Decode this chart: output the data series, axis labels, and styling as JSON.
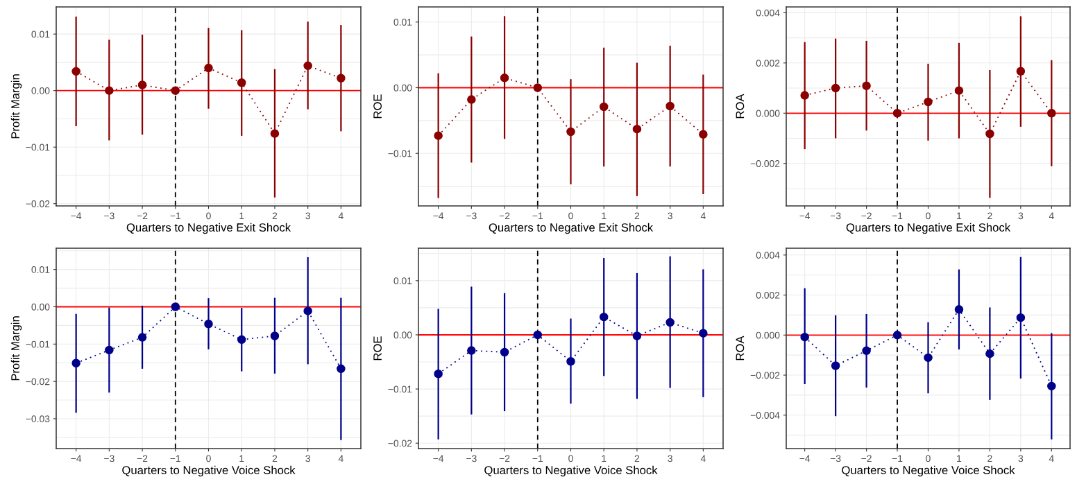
{
  "chart_data": [
    {
      "type": "line",
      "ylabel": "Profit Margin",
      "xlabel": "Quarters to Negative Exit Shock",
      "x": [
        -4,
        -3,
        -2,
        -1,
        0,
        1,
        2,
        3,
        4
      ],
      "xlim": [
        -4.6,
        4.6
      ],
      "xticks": [
        -4,
        -3,
        -2,
        -1,
        0,
        1,
        2,
        3,
        4
      ],
      "ylim": [
        -0.0204,
        0.0148
      ],
      "yticks": [
        {
          "value": -0.02,
          "label": "−0.02"
        },
        {
          "value": -0.01,
          "label": "−0.01"
        },
        {
          "value": 0,
          "label": "0.00"
        },
        {
          "value": 0.01,
          "label": "0.01"
        }
      ],
      "grid": true,
      "marker": "circle",
      "line_style": "dotted",
      "series": [
        {
          "color": "#8b0000",
          "values": [
            0.0034,
            0.0,
            0.001,
            0.0,
            0.004,
            0.0014,
            -0.0076,
            0.0044,
            0.0022
          ],
          "errors": [
            [
              -0.0063,
              0.0131
            ],
            [
              -0.0088,
              0.009
            ],
            [
              -0.0078,
              0.0099
            ],
            null,
            [
              -0.0032,
              0.0111
            ],
            [
              -0.008,
              0.0107
            ],
            [
              -0.0189,
              0.0038
            ],
            [
              -0.0033,
              0.0122
            ],
            [
              -0.0072,
              0.0116
            ]
          ]
        }
      ],
      "ref_lines": [
        {
          "axis": "y",
          "value": 0,
          "color": "#ff0000",
          "line_style": "solid"
        },
        {
          "axis": "x",
          "value": -1,
          "color": "#000000",
          "line_style": "dashed"
        }
      ]
    },
    {
      "type": "line",
      "ylabel": "ROE",
      "xlabel": "Quarters to Negative Exit Shock",
      "x": [
        -4,
        -3,
        -2,
        -1,
        0,
        1,
        2,
        3,
        4
      ],
      "xlim": [
        -4.6,
        4.6
      ],
      "xticks": [
        -4,
        -3,
        -2,
        -1,
        0,
        1,
        2,
        3,
        4
      ],
      "ylim": [
        -0.018,
        0.0123
      ],
      "yticks": [
        {
          "value": -0.01,
          "label": "−0.01"
        },
        {
          "value": 0,
          "label": "0.00"
        },
        {
          "value": 0.01,
          "label": "0.01"
        }
      ],
      "grid": true,
      "marker": "circle",
      "line_style": "dotted",
      "series": [
        {
          "color": "#8b0000",
          "values": [
            -0.0073,
            -0.0018,
            0.0015,
            0.0,
            -0.0067,
            -0.0029,
            -0.0063,
            -0.0028,
            -0.0071
          ],
          "errors": [
            [
              -0.0168,
              0.0022
            ],
            [
              -0.0114,
              0.0078
            ],
            [
              -0.0078,
              0.0109
            ],
            null,
            [
              -0.0147,
              0.0013
            ],
            [
              -0.012,
              0.0061
            ],
            [
              -0.0165,
              0.0038
            ],
            [
              -0.012,
              0.0064
            ],
            [
              -0.0162,
              0.002
            ]
          ]
        }
      ],
      "ref_lines": [
        {
          "axis": "y",
          "value": 0,
          "color": "#ff0000",
          "line_style": "solid"
        },
        {
          "axis": "x",
          "value": -1,
          "color": "#000000",
          "line_style": "dashed"
        }
      ]
    },
    {
      "type": "line",
      "ylabel": "ROA",
      "xlabel": "Quarters to Negative Exit Shock",
      "x": [
        -4,
        -3,
        -2,
        -1,
        0,
        1,
        2,
        3,
        4
      ],
      "xlim": [
        -4.6,
        4.6
      ],
      "xticks": [
        -4,
        -3,
        -2,
        -1,
        0,
        1,
        2,
        3,
        4
      ],
      "ylim": [
        -0.00369,
        0.00423
      ],
      "yticks": [
        {
          "value": -0.002,
          "label": "−0.002"
        },
        {
          "value": 0,
          "label": "0.000"
        },
        {
          "value": 0.002,
          "label": "0.002"
        },
        {
          "value": 0.004,
          "label": "0.004"
        }
      ],
      "grid": true,
      "marker": "circle",
      "line_style": "dotted",
      "series": [
        {
          "color": "#8b0000",
          "values": [
            0.00071,
            0.001,
            0.00109,
            0.0,
            0.00045,
            0.0009,
            -0.00082,
            0.00167,
            0.0
          ],
          "errors": [
            [
              -0.00143,
              0.00283
            ],
            [
              -0.001,
              0.00297
            ],
            [
              -0.00069,
              0.00288
            ],
            null,
            [
              -0.00109,
              0.00197
            ],
            [
              -0.001,
              0.0028
            ],
            [
              -0.00337,
              0.00172
            ],
            [
              -0.00054,
              0.00386
            ],
            [
              -0.00211,
              0.00211
            ]
          ]
        }
      ],
      "ref_lines": [
        {
          "axis": "y",
          "value": 0,
          "color": "#ff0000",
          "line_style": "solid"
        },
        {
          "axis": "x",
          "value": -1,
          "color": "#000000",
          "line_style": "dashed"
        }
      ]
    },
    {
      "type": "line",
      "ylabel": "Profit Margin",
      "xlabel": "Quarters to Negative Voice Shock",
      "x": [
        -4,
        -3,
        -2,
        -1,
        0,
        1,
        2,
        3,
        4
      ],
      "xlim": [
        -4.6,
        4.6
      ],
      "xticks": [
        -4,
        -3,
        -2,
        -1,
        0,
        1,
        2,
        3,
        4
      ],
      "ylim": [
        -0.038,
        0.0157
      ],
      "yticks": [
        {
          "value": -0.03,
          "label": "−0.03"
        },
        {
          "value": -0.02,
          "label": "−0.02"
        },
        {
          "value": -0.01,
          "label": "−0.01"
        },
        {
          "value": 0,
          "label": "0.00"
        },
        {
          "value": 0.01,
          "label": "0.01"
        }
      ],
      "grid": true,
      "marker": "circle",
      "line_style": "dotted",
      "series": [
        {
          "color": "#00008b",
          "values": [
            -0.0151,
            -0.0116,
            -0.0082,
            0.0,
            -0.0046,
            -0.0088,
            -0.0078,
            -0.0011,
            -0.0166
          ],
          "errors": [
            [
              -0.0284,
              -0.0019
            ],
            [
              -0.023,
              -0.0002
            ],
            [
              -0.0166,
              0.0003
            ],
            null,
            [
              -0.0114,
              0.0023
            ],
            [
              -0.0173,
              -0.0003
            ],
            [
              -0.0179,
              0.0024
            ],
            [
              -0.0154,
              0.0133
            ],
            [
              -0.0357,
              0.0024
            ]
          ]
        }
      ],
      "ref_lines": [
        {
          "axis": "y",
          "value": 0,
          "color": "#ff0000",
          "line_style": "solid"
        },
        {
          "axis": "x",
          "value": -1,
          "color": "#000000",
          "line_style": "dashed"
        }
      ]
    },
    {
      "type": "line",
      "ylabel": "ROE",
      "xlabel": "Quarters to Negative Voice Shock",
      "x": [
        -4,
        -3,
        -2,
        -1,
        0,
        1,
        2,
        3,
        4
      ],
      "xlim": [
        -4.6,
        4.6
      ],
      "xticks": [
        -4,
        -3,
        -2,
        -1,
        0,
        1,
        2,
        3,
        4
      ],
      "ylim": [
        -0.021,
        0.016
      ],
      "yticks": [
        {
          "value": -0.02,
          "label": "−0.02"
        },
        {
          "value": -0.01,
          "label": "−0.01"
        },
        {
          "value": 0,
          "label": "0.00"
        },
        {
          "value": 0.01,
          "label": "0.01"
        }
      ],
      "grid": true,
      "marker": "circle",
      "line_style": "dotted",
      "series": [
        {
          "color": "#00008b",
          "values": [
            -0.0072,
            -0.0029,
            -0.0032,
            0.0,
            -0.0049,
            0.0033,
            -0.0002,
            0.0023,
            0.0003
          ],
          "errors": [
            [
              -0.0193,
              0.0048
            ],
            [
              -0.0147,
              0.0089
            ],
            [
              -0.0141,
              0.0077
            ],
            null,
            [
              -0.0127,
              0.003
            ],
            [
              -0.0076,
              0.0142
            ],
            [
              -0.0118,
              0.0114
            ],
            [
              -0.0098,
              0.0145
            ],
            [
              -0.0115,
              0.0121
            ]
          ]
        }
      ],
      "ref_lines": [
        {
          "axis": "y",
          "value": 0,
          "color": "#ff0000",
          "line_style": "solid"
        },
        {
          "axis": "x",
          "value": -1,
          "color": "#000000",
          "line_style": "dashed"
        }
      ]
    },
    {
      "type": "line",
      "ylabel": "ROA",
      "xlabel": "Quarters to Negative Voice Shock",
      "x": [
        -4,
        -3,
        -2,
        -1,
        0,
        1,
        2,
        3,
        4
      ],
      "xlim": [
        -4.6,
        4.6
      ],
      "xticks": [
        -4,
        -3,
        -2,
        -1,
        0,
        1,
        2,
        3,
        4
      ],
      "ylim": [
        -0.00567,
        0.00434
      ],
      "yticks": [
        {
          "value": -0.004,
          "label": "−0.004"
        },
        {
          "value": -0.002,
          "label": "−0.002"
        },
        {
          "value": 0,
          "label": "0.000"
        },
        {
          "value": 0.002,
          "label": "0.002"
        },
        {
          "value": 0.004,
          "label": "0.004"
        }
      ],
      "grid": true,
      "marker": "circle",
      "line_style": "dotted",
      "series": [
        {
          "color": "#00008b",
          "values": [
            -0.0001,
            -0.00153,
            -0.00078,
            0.0,
            -0.00113,
            0.00128,
            -0.00093,
            0.00087,
            -0.00255
          ],
          "errors": [
            [
              -0.00245,
              0.00234
            ],
            [
              -0.00405,
              0.00099
            ],
            [
              -0.00262,
              0.00105
            ],
            null,
            [
              -0.00291,
              0.00064
            ],
            [
              -0.00072,
              0.00328
            ],
            [
              -0.00324,
              0.00138
            ],
            [
              -0.00217,
              0.0039
            ],
            [
              -0.00521,
              0.0001
            ]
          ]
        }
      ],
      "ref_lines": [
        {
          "axis": "y",
          "value": 0,
          "color": "#ff0000",
          "line_style": "solid"
        },
        {
          "axis": "x",
          "value": -1,
          "color": "#000000",
          "line_style": "dashed"
        }
      ]
    }
  ]
}
